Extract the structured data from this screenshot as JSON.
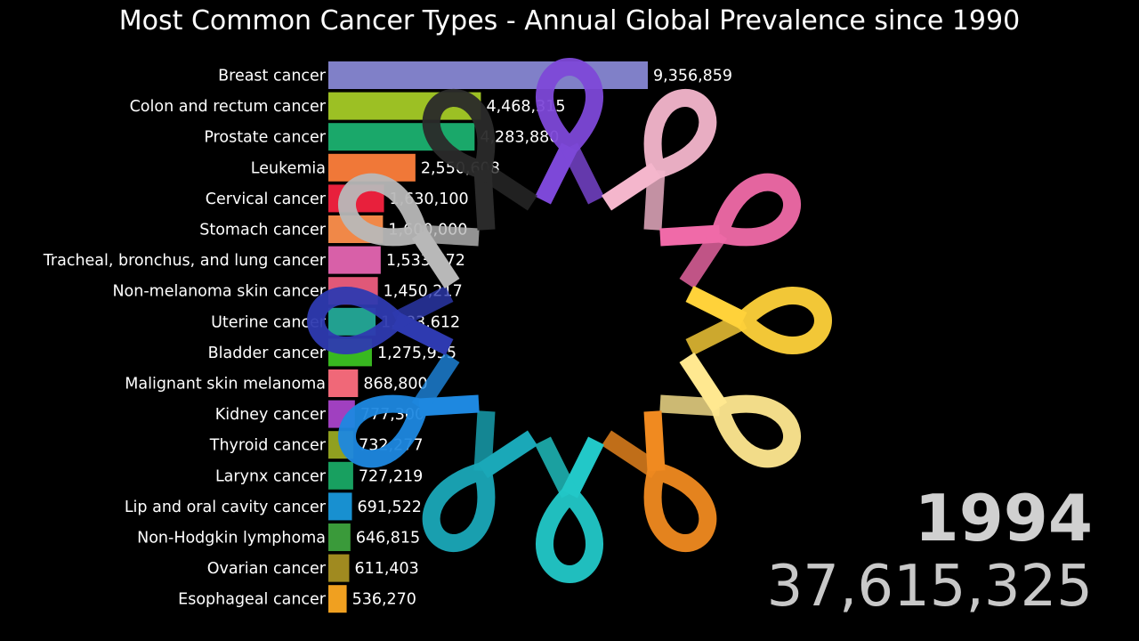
{
  "chart_data": {
    "type": "bar",
    "orientation": "horizontal",
    "title": "Most Common Cancer Types - Annual Global Prevalence since 1990",
    "categories": [
      "Breast cancer",
      "Colon and rectum cancer",
      "Prostate cancer",
      "Leukemia",
      "Cervical cancer",
      "Stomach cancer",
      "Tracheal, bronchus, and lung cancer",
      "Non-melanoma skin cancer",
      "Uterine cancer",
      "Bladder cancer",
      "Malignant skin melanoma",
      "Kidney cancer",
      "Thyroid cancer",
      "Larynx cancer",
      "Lip and oral cavity cancer",
      "Non-Hodgkin lymphoma",
      "Ovarian cancer",
      "Esophageal cancer"
    ],
    "values": [
      9356859,
      4468315,
      4283880,
      2550608,
      1630100,
      1600000,
      1533572,
      1450217,
      1383612,
      1275955,
      868800,
      777300,
      732277,
      727219,
      691522,
      646815,
      611403,
      536270
    ],
    "value_labels": [
      "9,356,859",
      "4,468,315",
      "4,283,880",
      "2,550,608",
      "1,630,100",
      "1,600,000",
      "1,533,572",
      "1,450,217",
      "1,383,612",
      "1,275,955",
      "868,800",
      "777,300",
      "732,277",
      "727,219",
      "691,522",
      "646,815",
      "611,403",
      "536,270"
    ],
    "colors": [
      "#8080c8",
      "#9cc024",
      "#1aa86a",
      "#f07838",
      "#e8203c",
      "#f08848",
      "#d860a8",
      "#e05878",
      "#22a090",
      "#38b820",
      "#f06878",
      "#a040c0",
      "#90a020",
      "#18a060",
      "#1890d0",
      "#3a9a3a",
      "#a08a20",
      "#f0a020"
    ],
    "legend": "none",
    "grid": false
  },
  "year": "1994",
  "total": "37,615,325"
}
